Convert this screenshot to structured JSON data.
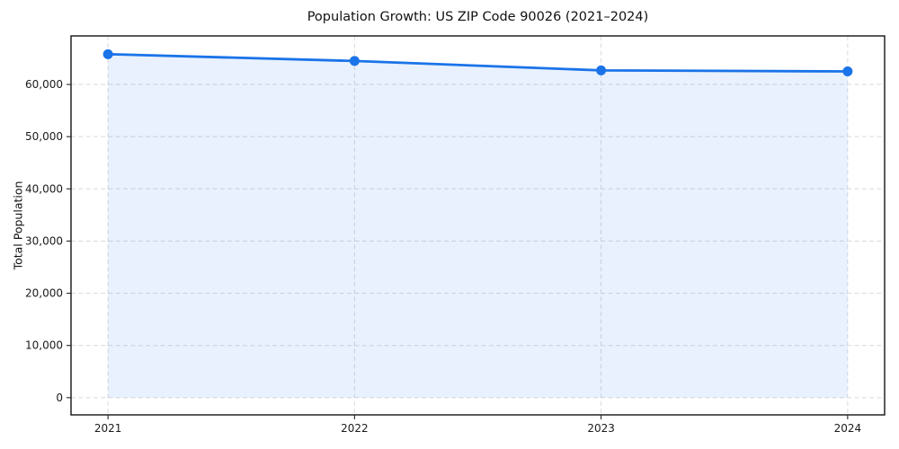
{
  "chart_data": {
    "type": "area",
    "title": "Population Growth: US ZIP Code 90026 (2021–2024)",
    "xlabel": "",
    "ylabel": "Total Population",
    "x": [
      2021,
      2022,
      2023,
      2024
    ],
    "x_labels": [
      "2021",
      "2022",
      "2023",
      "2024"
    ],
    "series_name": "Total Population",
    "values": [
      65800,
      64500,
      62700,
      62500
    ],
    "ylim": [
      -3300,
      69300
    ],
    "yticks": [
      0,
      10000,
      20000,
      30000,
      40000,
      50000,
      60000
    ],
    "ytick_labels": [
      "0",
      "10,000",
      "20,000",
      "30,000",
      "40,000",
      "50,000",
      "60,000"
    ],
    "grid": "dashed-both-axes",
    "legend": "none",
    "line_color": "#1a73e8",
    "marker_color": "#1a73e8",
    "fill_color": "rgba(26,115,232,0.10)",
    "grid_color": "#d9d9d9",
    "frame_color": "#000000",
    "marker": "circle"
  }
}
